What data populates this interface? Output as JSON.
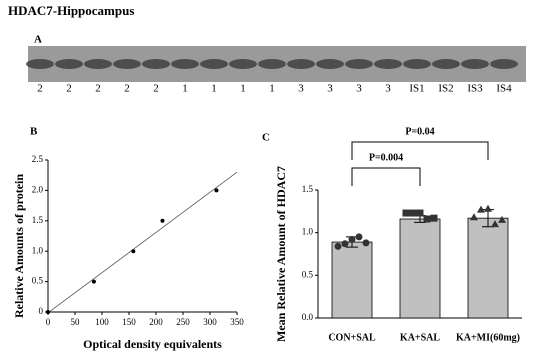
{
  "figure_title": "HDAC7-Hippocampus",
  "panel_labels": [
    "A",
    "B",
    "C"
  ],
  "blot": {
    "lanes": [
      "2",
      "2",
      "2",
      "2",
      "2",
      "1",
      "1",
      "1",
      "1",
      "3",
      "3",
      "3",
      "3",
      "IS1",
      "IS2",
      "IS3",
      "IS4"
    ]
  },
  "chart_data": [
    {
      "type": "scatter",
      "xlabel": "Optical density equivalents",
      "ylabel": "Relative Amounts of protein",
      "x": [
        0,
        85,
        158,
        212,
        312
      ],
      "values": [
        0,
        0.5,
        1.0,
        1.5,
        2.0
      ],
      "color": "#000000",
      "fit_line": true,
      "xlim": [
        0,
        350
      ],
      "xticks": [
        0,
        50,
        100,
        150,
        200,
        250,
        300,
        350
      ],
      "ylim": [
        0,
        2.5
      ],
      "yticks": [
        0,
        0.5,
        {
          "value": 1,
          "label": "1.0"
        },
        1.5,
        {
          "value": 2,
          "label": "2.0"
        },
        2.5
      ]
    },
    {
      "type": "bar",
      "ylabel": "Mean Relative Amount of HDAC7",
      "categories": [
        "CON+SAL",
        "KA+SAL",
        "KA+MI(60mg)"
      ],
      "values": [
        0.89,
        1.16,
        1.17
      ],
      "errors": [
        0.06,
        0.04,
        0.1
      ],
      "points": [
        [
          0.84,
          0.87,
          0.92,
          0.95,
          0.88
        ],
        [
          1.23,
          1.23,
          1.23,
          1.16,
          1.17
        ],
        [
          1.18,
          1.27,
          1.28,
          1.1,
          1.15
        ]
      ],
      "markers": [
        "circle",
        "square",
        "triangle"
      ],
      "color": "#c0c0c0",
      "point_color": "#333333",
      "annotations": [
        "P=0.004",
        "P=0.04"
      ],
      "ylim": [
        0,
        1.5
      ],
      "yticks": [
        {
          "value": 0,
          "label": "0.0"
        },
        0.5,
        {
          "value": 1,
          "label": "1.0"
        },
        1.5
      ]
    }
  ]
}
